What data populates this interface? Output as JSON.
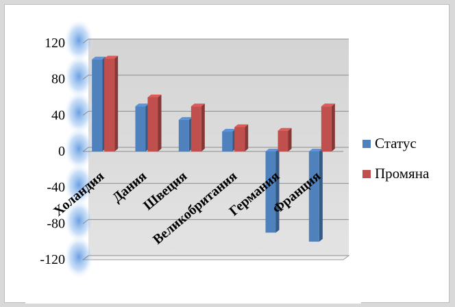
{
  "chart_data": {
    "type": "bar",
    "categories": [
      "Холандия",
      "Дания",
      "Швеция",
      "Великобритания",
      "Германия",
      "Франция"
    ],
    "series": [
      {
        "name": "Статус",
        "color": "#4f81bd",
        "values": [
          102,
          50,
          35,
          22,
          -90,
          -100
        ]
      },
      {
        "name": "Промяна",
        "color": "#c0504d",
        "values": [
          103,
          60,
          50,
          27,
          23,
          50
        ]
      }
    ],
    "y_ticks": [
      "120",
      "80",
      "40",
      "0",
      "-40",
      "-80",
      "-120"
    ],
    "ylim": [
      -120,
      120
    ],
    "grid": true,
    "legend_position": "right",
    "style": "3d-clustered-column"
  }
}
